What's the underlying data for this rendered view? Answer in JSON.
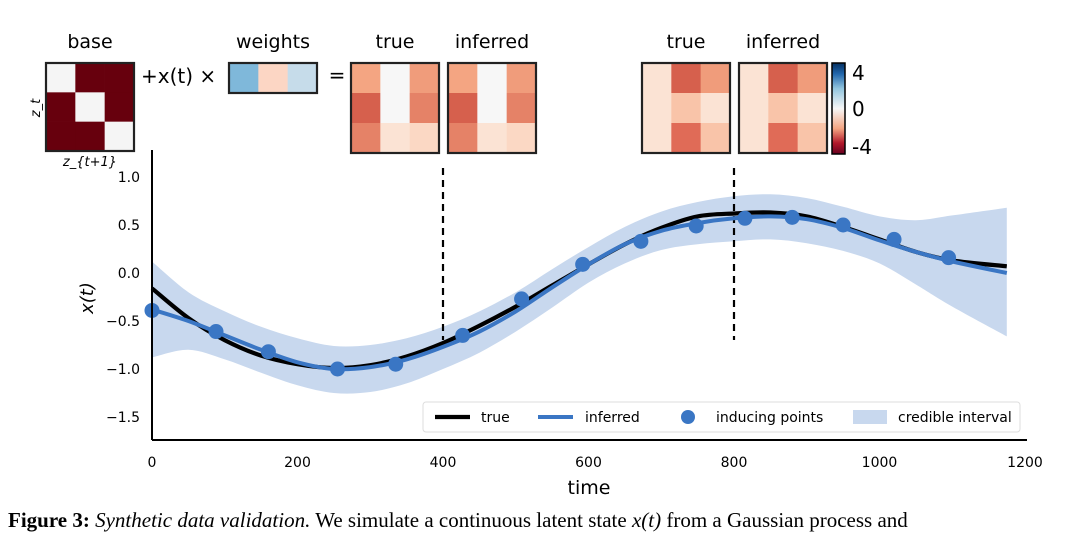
{
  "chart_data": {
    "type": "line",
    "xlabel": "time",
    "ylabel": "x(t)",
    "xlim": [
      0,
      1200
    ],
    "ylim": [
      -1.75,
      1.1
    ],
    "x_ticks": [
      "0",
      "200",
      "400",
      "600",
      "800",
      "1000",
      "1200"
    ],
    "y_ticks": [
      "1.0",
      "0.5",
      "0.0",
      "−0.5",
      "−1.0",
      "−1.5"
    ],
    "grid": false,
    "legend_position": "lower-right",
    "legend": {
      "true_label": "true",
      "inferred_label": "inferred",
      "inducing_label": "inducing points",
      "interval_label": "credible interval"
    },
    "colors": {
      "true": "#000000",
      "inferred": "#3a76c4",
      "interval": "#c8d8ee"
    },
    "series": [
      {
        "name": "true",
        "x": [
          0,
          50,
          100,
          150,
          200,
          250,
          300,
          350,
          400,
          450,
          500,
          550,
          600,
          650,
          700,
          750,
          800,
          850,
          900,
          950,
          1000,
          1050,
          1100,
          1175
        ],
        "y": [
          -0.16,
          -0.47,
          -0.7,
          -0.86,
          -0.95,
          -0.99,
          -0.96,
          -0.87,
          -0.73,
          -0.55,
          -0.35,
          -0.13,
          0.09,
          0.3,
          0.47,
          0.59,
          0.62,
          0.63,
          0.59,
          0.48,
          0.35,
          0.22,
          0.13,
          0.07
        ]
      },
      {
        "name": "inferred",
        "x": [
          0,
          50,
          100,
          150,
          200,
          250,
          300,
          350,
          400,
          450,
          500,
          550,
          600,
          650,
          700,
          750,
          800,
          850,
          900,
          950,
          1000,
          1050,
          1100,
          1175
        ],
        "y": [
          -0.38,
          -0.5,
          -0.65,
          -0.8,
          -0.93,
          -1.0,
          -0.98,
          -0.9,
          -0.77,
          -0.61,
          -0.4,
          -0.15,
          0.09,
          0.3,
          0.44,
          0.52,
          0.57,
          0.59,
          0.56,
          0.47,
          0.34,
          0.22,
          0.12,
          0.0
        ]
      },
      {
        "name": "inducing points",
        "x": [
          0,
          88,
          160,
          255,
          335,
          427,
          508,
          592,
          672,
          748,
          815,
          880,
          950,
          1020,
          1095
        ],
        "y": [
          -0.39,
          -0.61,
          -0.82,
          -1.0,
          -0.95,
          -0.65,
          -0.27,
          0.09,
          0.33,
          0.49,
          0.57,
          0.58,
          0.5,
          0.35,
          0.16
        ]
      }
    ],
    "credible_interval": {
      "x": [
        0,
        50,
        100,
        150,
        200,
        250,
        300,
        350,
        400,
        450,
        500,
        550,
        600,
        650,
        700,
        750,
        800,
        850,
        900,
        950,
        1000,
        1050,
        1100,
        1175
      ],
      "upper": [
        0.12,
        -0.2,
        -0.4,
        -0.56,
        -0.68,
        -0.76,
        -0.75,
        -0.68,
        -0.56,
        -0.4,
        -0.2,
        0.04,
        0.27,
        0.48,
        0.64,
        0.74,
        0.8,
        0.82,
        0.78,
        0.69,
        0.59,
        0.55,
        0.6,
        0.68
      ],
      "lower": [
        -0.88,
        -0.8,
        -0.9,
        -1.04,
        -1.17,
        -1.25,
        -1.24,
        -1.15,
        -1.0,
        -0.83,
        -0.61,
        -0.36,
        -0.1,
        0.1,
        0.24,
        0.3,
        0.33,
        0.35,
        0.31,
        0.23,
        0.1,
        -0.12,
        -0.35,
        -0.66
      ]
    },
    "vertical_markers": [
      {
        "x": 400,
        "style": "dashed"
      },
      {
        "x": 800,
        "style": "dashed"
      }
    ],
    "inset_matrices": {
      "base": {
        "title": "base",
        "row_label": "z_t",
        "col_label": "z_{t+1}",
        "values": [
          [
            0,
            1,
            1
          ],
          [
            1,
            0,
            1
          ],
          [
            1,
            1,
            0
          ]
        ],
        "colors": {
          "zero": "#f5f5f5",
          "one": "#67000d"
        }
      },
      "operator": "+x(t) ×",
      "weights": {
        "title": "weights",
        "colors": [
          "#7fb8da",
          "#fcd6c4",
          "#c6dcea"
        ]
      },
      "equals": "=",
      "t400": {
        "true": {
          "title": "true",
          "colors": [
            [
              "#f4a582",
              "#f7f7f7",
              "#f09c7b"
            ],
            [
              "#d6604d",
              "#f7f7f7",
              "#e58267"
            ],
            [
              "#e58267",
              "#fbe3d4",
              "#fbd8c4"
            ]
          ]
        },
        "inferred": {
          "title": "inferred",
          "colors": [
            [
              "#f4a582",
              "#f7f7f7",
              "#f09c7b"
            ],
            [
              "#d6604d",
              "#f7f7f7",
              "#e58267"
            ],
            [
              "#e58267",
              "#fbe3d4",
              "#fbd8c4"
            ]
          ]
        }
      },
      "t800": {
        "true": {
          "title": "true",
          "colors": [
            [
              "#fbe3d4",
              "#d6604d",
              "#f09c7b"
            ],
            [
              "#fbe3d4",
              "#f9c4a9",
              "#fbe3d4"
            ],
            [
              "#fbe3d4",
              "#e06b57",
              "#f9c4a9"
            ]
          ]
        },
        "inferred": {
          "title": "inferred",
          "colors": [
            [
              "#fbe3d4",
              "#d6604d",
              "#f09c7b"
            ],
            [
              "#fbe3d4",
              "#f9c4a9",
              "#fbe3d4"
            ],
            [
              "#fbe3d4",
              "#e06b57",
              "#f9c4a9"
            ]
          ]
        }
      },
      "colorbar": {
        "ticks": [
          "4",
          "0",
          "-4"
        ],
        "range": [
          -4,
          4
        ]
      }
    }
  },
  "caption": {
    "label": "Figure 3:",
    "title": "Synthetic data validation.",
    "text_before": "We simulate a continuous latent state",
    "math": "x(t)",
    "text_after": "from a Gaussian process and"
  }
}
